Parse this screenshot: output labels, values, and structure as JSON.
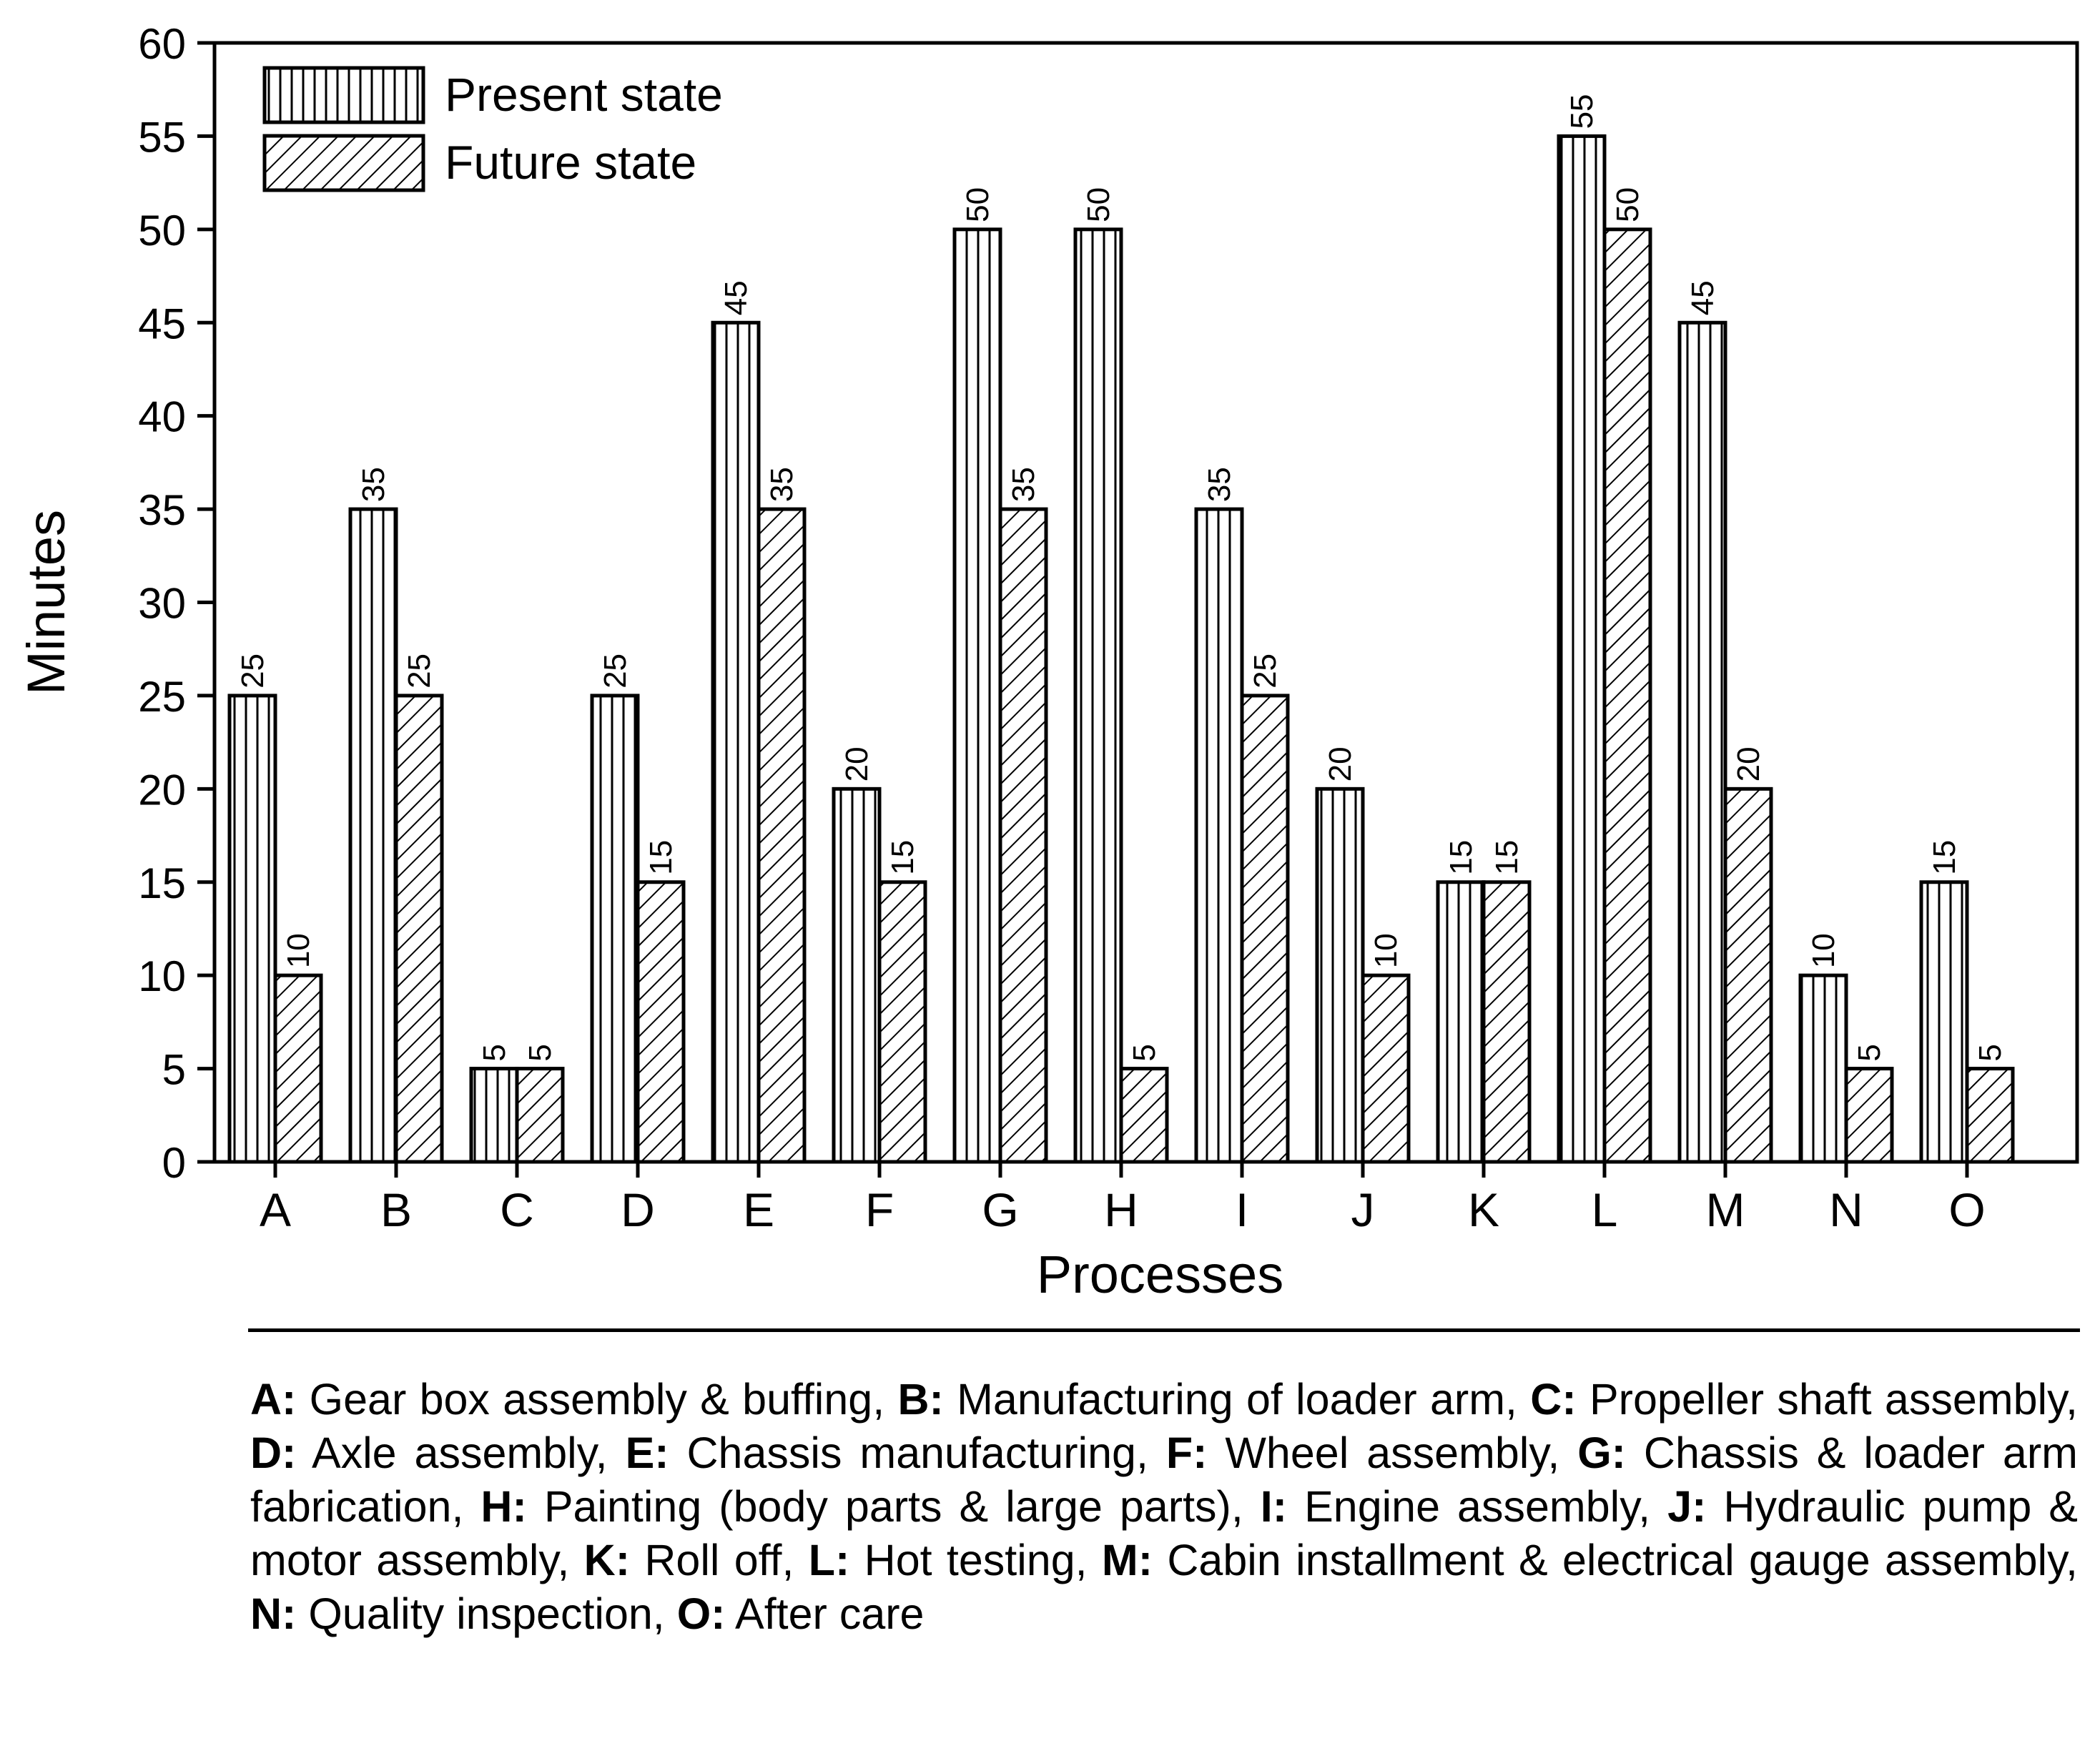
{
  "chart_data": {
    "type": "bar",
    "xlabel": "Processes",
    "ylabel": "Minutes",
    "ylim": [
      0,
      60
    ],
    "yticks": [
      0,
      5,
      10,
      15,
      20,
      25,
      30,
      35,
      40,
      45,
      50,
      55,
      60
    ],
    "categories": [
      "A",
      "B",
      "C",
      "D",
      "E",
      "F",
      "G",
      "H",
      "I",
      "J",
      "K",
      "L",
      "M",
      "N",
      "O"
    ],
    "series": [
      {
        "name": "Present state",
        "pattern": "vertical-lines",
        "values": [
          25,
          35,
          5,
          25,
          45,
          20,
          50,
          50,
          35,
          20,
          15,
          55,
          45,
          10,
          15
        ]
      },
      {
        "name": "Future state",
        "pattern": "diagonal-hatch",
        "values": [
          10,
          25,
          5,
          15,
          35,
          15,
          35,
          5,
          25,
          10,
          15,
          50,
          20,
          5,
          5
        ]
      }
    ],
    "legend_position": "top-left",
    "grid": false
  },
  "caption": [
    {
      "key": "A:",
      "text": " Gear box assembly & buffing, "
    },
    {
      "key": "B:",
      "text": " Manufacturing of loader arm, "
    },
    {
      "key": "C:",
      "text": " Propeller shaft assembly, "
    },
    {
      "key": "D:",
      "text": " Axle assembly, "
    },
    {
      "key": "E:",
      "text": " Chassis manufacturing, "
    },
    {
      "key": "F:",
      "text": " Wheel assembly, "
    },
    {
      "key": "G:",
      "text": " Chassis & loader arm fabrication, "
    },
    {
      "key": "H:",
      "text": " Painting (body parts & large parts), "
    },
    {
      "key": "I:",
      "text": " Engine assembly, "
    },
    {
      "key": "J:",
      "text": " Hydraulic pump & motor assembly, "
    },
    {
      "key": "K:",
      "text": " Roll off, "
    },
    {
      "key": "L:",
      "text": " Hot testing, "
    },
    {
      "key": "M:",
      "text": " Cabin installment & electrical gauge assembly, "
    },
    {
      "key": "N:",
      "text": " Quality inspection, "
    },
    {
      "key": "O:",
      "text": " After care"
    }
  ]
}
